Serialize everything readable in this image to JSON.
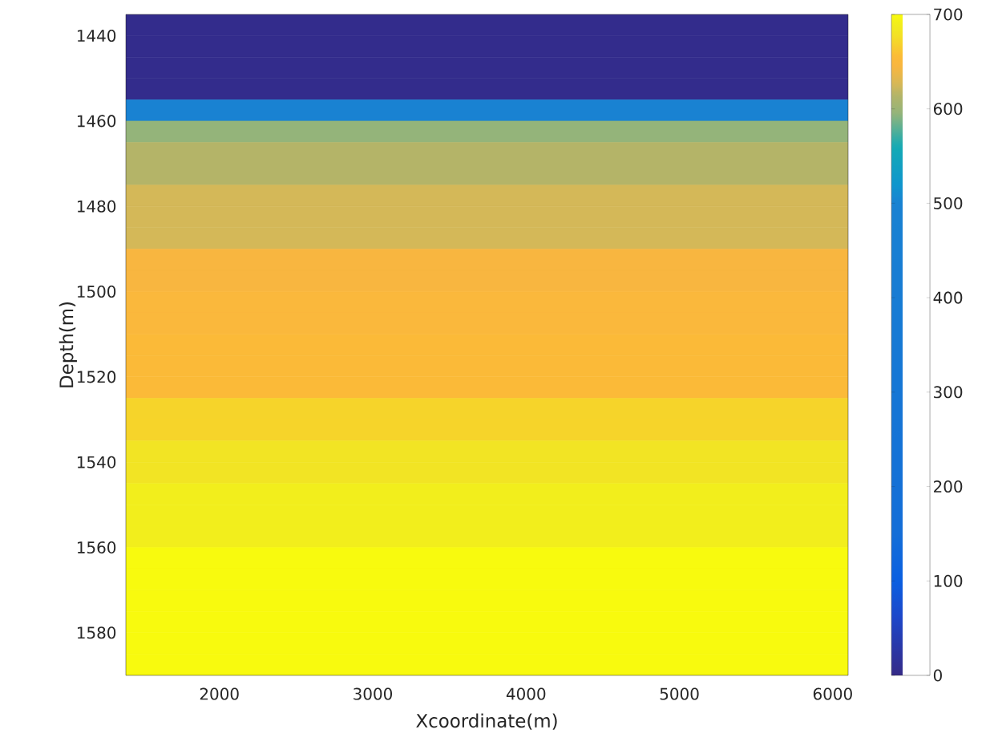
{
  "chart_data": {
    "type": "heatmap",
    "xlabel": "Xcoordinate(m)",
    "ylabel": "Depth(m)",
    "cells": [
      [
        5
      ],
      [
        5
      ],
      [
        5
      ],
      [
        5
      ],
      [
        500
      ],
      [
        595
      ],
      [
        615
      ],
      [
        615
      ],
      [
        625
      ],
      [
        625
      ],
      [
        625
      ],
      [
        645
      ],
      [
        645
      ],
      [
        650
      ],
      [
        650
      ],
      [
        655
      ],
      [
        655
      ],
      [
        655
      ],
      [
        670
      ],
      [
        670
      ],
      [
        680
      ],
      [
        680
      ],
      [
        690
      ],
      [
        690
      ],
      [
        690
      ],
      [
        700
      ],
      [
        700
      ],
      [
        700
      ],
      [
        700
      ],
      [
        700
      ],
      [
        700
      ]
    ],
    "xlim": [
      1390,
      6100
    ],
    "xticks": [
      2000,
      3000,
      4000,
      5000,
      6000
    ],
    "ylim": [
      1590,
      1435
    ],
    "yticks": [
      1440,
      1460,
      1480,
      1500,
      1520,
      1540,
      1560,
      1580
    ],
    "clim": [
      0,
      700
    ],
    "cticks": [
      0,
      100,
      200,
      300,
      400,
      500,
      600,
      700
    ]
  }
}
